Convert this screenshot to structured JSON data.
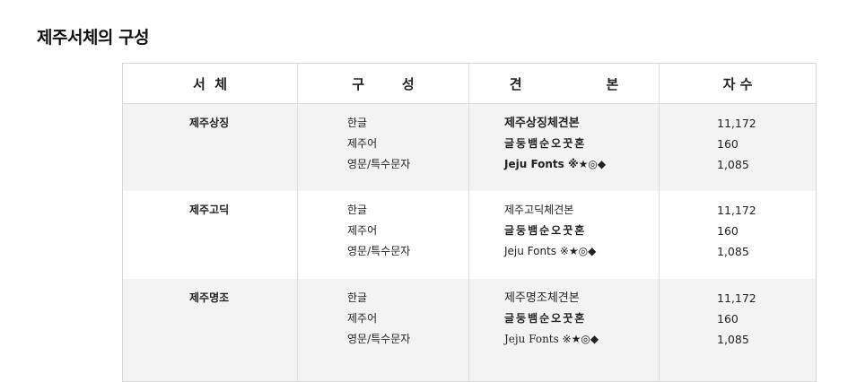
{
  "page": {
    "title": "제주서체의 구성"
  },
  "table": {
    "headers": [
      "서  체",
      "구        성",
      "견                  본",
      "자 수"
    ],
    "rows": [
      {
        "name": "제주상징",
        "composition": [
          "한글",
          "제주어",
          "영문/특수문자"
        ],
        "samples": [
          "제주상징체견본",
          "글둥뱀순오꿋혼",
          "Jeju Fonts ※★◎◆"
        ],
        "counts": [
          "11,172",
          "160",
          "1,085"
        ]
      },
      {
        "name": "제주고딕",
        "composition": [
          "한글",
          "제주어",
          "영문/특수문자"
        ],
        "samples": [
          "제주고딕체견본",
          "글둥뱀순오꿋혼",
          "Jeju Fonts ※★◎◆"
        ],
        "counts": [
          "11,172",
          "160",
          "1,085"
        ]
      },
      {
        "name": "제주명조",
        "composition": [
          "한글",
          "제주어",
          "영문/특수문자"
        ],
        "samples": [
          "제주명조체견본",
          "글둥뱀순오꿋혼",
          "Jeju Fonts ※★◎◆"
        ],
        "counts": [
          "11,172",
          "160",
          "1,085"
        ]
      }
    ]
  }
}
